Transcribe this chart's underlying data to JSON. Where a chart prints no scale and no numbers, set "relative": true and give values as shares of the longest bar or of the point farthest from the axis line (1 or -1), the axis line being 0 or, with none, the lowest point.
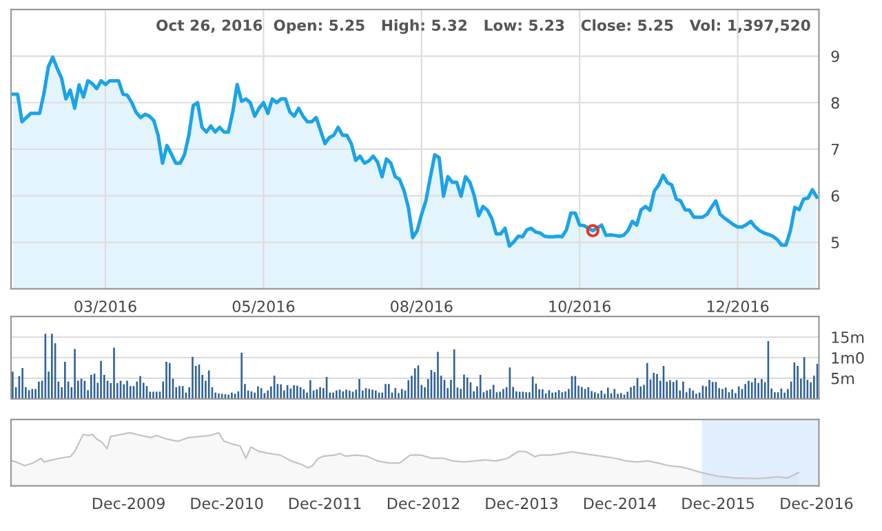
{
  "chart_data": [
    {
      "type": "area",
      "ylim": [
        4.0,
        10.0
      ],
      "yticks": [
        5,
        6,
        7,
        8,
        9
      ],
      "grid": true,
      "categories": [
        null,
        null,
        null,
        null,
        null,
        null,
        null,
        null,
        null,
        null,
        null,
        null,
        null,
        null,
        null,
        null,
        null,
        null,
        null,
        null,
        null,
        "03/2016",
        null,
        null,
        null,
        null,
        null,
        null,
        null,
        null,
        null,
        null,
        null,
        null,
        null,
        null,
        null,
        null,
        null,
        null,
        null,
        null,
        null,
        null,
        null,
        null,
        null,
        null,
        null,
        null,
        null,
        null,
        null,
        null,
        null,
        null,
        null,
        "05/2016",
        null,
        null,
        null,
        null,
        null,
        null,
        null,
        null,
        null,
        null,
        null,
        null,
        null,
        null,
        null,
        null,
        null,
        null,
        null,
        null,
        null,
        null,
        null,
        null,
        null,
        null,
        null,
        null,
        null,
        null,
        null,
        null,
        null,
        null,
        null,
        "08/2016",
        null,
        null,
        null,
        null,
        null,
        null,
        null,
        null,
        null,
        null,
        null,
        null,
        null,
        null,
        null,
        null,
        null,
        null,
        null,
        null,
        null,
        null,
        null,
        null,
        null,
        null,
        null,
        null,
        null,
        null,
        null,
        null,
        null,
        null,
        null,
        "10/2016",
        null,
        null,
        null,
        null,
        null,
        null,
        null,
        null,
        null,
        null,
        null,
        null,
        null,
        null,
        null,
        null,
        null,
        null,
        null,
        null,
        null,
        null,
        null,
        null,
        null,
        null,
        null,
        null,
        null,
        null,
        null,
        null,
        null,
        null,
        null,
        "12/2016",
        null,
        null,
        null,
        null,
        null,
        null,
        null,
        null,
        null,
        null,
        null,
        null,
        null,
        null,
        null,
        null,
        null,
        null
      ],
      "annotations": [
        "Oct 26, 2016  Open: 5.25   High: 5.32   Low: 5.23   Close: 5.25   Vol: 1,397,520"
      ],
      "series": [
        {
          "color": "#1aa3e8",
          "values": [
            8.18,
            8.18,
            7.59,
            7.68,
            7.77,
            7.77,
            7.77,
            8.2,
            8.77,
            8.98,
            8.74,
            8.53,
            8.08,
            8.27,
            7.88,
            8.38,
            8.12,
            8.47,
            8.41,
            8.3,
            8.47,
            8.39,
            8.47,
            8.47,
            8.47,
            8.18,
            8.16,
            8.0,
            7.79,
            7.68,
            7.75,
            7.71,
            7.62,
            7.3,
            6.7,
            7.08,
            6.9,
            6.7,
            6.7,
            6.88,
            7.3,
            7.94,
            8.0,
            7.47,
            7.37,
            7.5,
            7.37,
            7.47,
            7.37,
            7.37,
            7.8,
            8.39,
            8.03,
            8.08,
            8.0,
            7.71,
            7.88,
            8.0,
            7.77,
            8.08,
            8.0,
            8.08,
            8.08,
            7.8,
            7.71,
            7.88,
            7.71,
            7.59,
            7.59,
            7.68,
            7.4,
            7.12,
            7.25,
            7.3,
            7.47,
            7.3,
            7.3,
            7.12,
            6.76,
            6.85,
            6.7,
            6.75,
            6.85,
            6.72,
            6.41,
            6.79,
            6.7,
            6.41,
            6.35,
            6.11,
            5.75,
            5.1,
            5.25,
            5.6,
            5.9,
            6.4,
            6.88,
            6.82,
            5.99,
            6.41,
            6.29,
            6.29,
            5.99,
            6.41,
            6.29,
            6.0,
            5.57,
            5.77,
            5.69,
            5.51,
            5.18,
            5.18,
            5.3,
            4.92,
            5.01,
            5.13,
            5.12,
            5.27,
            5.3,
            5.22,
            5.2,
            5.13,
            5.12,
            5.12,
            5.13,
            5.12,
            5.27,
            5.63,
            5.63,
            5.37,
            5.36,
            5.3,
            5.25,
            5.31,
            5.37,
            5.15,
            5.16,
            5.15,
            5.13,
            5.15,
            5.25,
            5.45,
            5.37,
            5.7,
            5.77,
            5.69,
            6.1,
            6.23,
            6.44,
            6.28,
            6.23,
            5.93,
            5.89,
            5.7,
            5.69,
            5.54,
            5.54,
            5.54,
            5.6,
            5.75,
            5.89,
            5.6,
            5.52,
            5.45,
            5.38,
            5.33,
            5.33,
            5.38,
            5.45,
            5.33,
            5.25,
            5.2,
            5.17,
            5.13,
            5.06,
            4.94,
            4.94,
            5.25,
            5.75,
            5.7,
            5.93,
            5.95,
            6.13,
            5.97
          ]
        },
        {
          "type": "scatter",
          "color": "#e8352a",
          "marker": "circle",
          "values": [
            null,
            null,
            null,
            null,
            null,
            null,
            null,
            null,
            null,
            null,
            null,
            null,
            null,
            null,
            null,
            null,
            null,
            null,
            null,
            null,
            null,
            null,
            null,
            null,
            null,
            null,
            null,
            null,
            null,
            null,
            null,
            null,
            null,
            null,
            null,
            null,
            null,
            null,
            null,
            null,
            null,
            null,
            null,
            null,
            null,
            null,
            null,
            null,
            null,
            null,
            null,
            null,
            null,
            null,
            null,
            null,
            null,
            null,
            null,
            null,
            null,
            null,
            null,
            null,
            null,
            null,
            null,
            null,
            null,
            null,
            null,
            null,
            null,
            null,
            null,
            null,
            null,
            null,
            null,
            null,
            null,
            null,
            null,
            null,
            null,
            null,
            null,
            null,
            null,
            null,
            null,
            null,
            null,
            null,
            null,
            null,
            null,
            null,
            null,
            null,
            null,
            null,
            null,
            null,
            null,
            null,
            null,
            null,
            null,
            null,
            null,
            null,
            null,
            null,
            null,
            null,
            null,
            null,
            null,
            null,
            null,
            null,
            null,
            null,
            null,
            null,
            null,
            null,
            null,
            null,
            null,
            null,
            5.25,
            null,
            null,
            null,
            null,
            null,
            null,
            null,
            null,
            null,
            null,
            null,
            null,
            null,
            null,
            null,
            null,
            null,
            null,
            null,
            null,
            null,
            null,
            null,
            null,
            null,
            null,
            null,
            null,
            null,
            null,
            null,
            null,
            null,
            null,
            null,
            null,
            null,
            null,
            null,
            null,
            null,
            null,
            null,
            null,
            null,
            null,
            null,
            null,
            null,
            null,
            null
          ]
        }
      ]
    },
    {
      "type": "bar",
      "ylim": [
        0,
        20
      ],
      "yticks": [
        {
          "value": 5,
          "label": "5m"
        },
        {
          "value": 10,
          "label": "1m0"
        },
        {
          "value": 15,
          "label": "15m"
        }
      ],
      "grid": "y",
      "categories": [
        null,
        null,
        null,
        null,
        null,
        null,
        null,
        null,
        null,
        null,
        null,
        null,
        null,
        null,
        null,
        null,
        null,
        null,
        null,
        null,
        null,
        null,
        null,
        null,
        null,
        null,
        null,
        null,
        null,
        null,
        null,
        null,
        null,
        null,
        null,
        null,
        null,
        null,
        null,
        null,
        null,
        null,
        null,
        null,
        null,
        null,
        null,
        null,
        null,
        null,
        null,
        null,
        null,
        null,
        null,
        null,
        null,
        null,
        null,
        null,
        null,
        null,
        null,
        null,
        null,
        null,
        null,
        null,
        null,
        null,
        null,
        null,
        null,
        null,
        null,
        null,
        null,
        null,
        null,
        null,
        null,
        null,
        null,
        null,
        null,
        null,
        null,
        null,
        null,
        null,
        null,
        null,
        null,
        null,
        null,
        null,
        null,
        null,
        null,
        null,
        null,
        null,
        null,
        null,
        null,
        null,
        null,
        null,
        null,
        null,
        null,
        null,
        null,
        null,
        null,
        null,
        null,
        null,
        null,
        null,
        null,
        null,
        null,
        null,
        null,
        null,
        null,
        null,
        null,
        null,
        null,
        null,
        null,
        null,
        null,
        null,
        null,
        null,
        null,
        null,
        null,
        null,
        null,
        null,
        null,
        null,
        null,
        null,
        null,
        null,
        null,
        null,
        null,
        null,
        null,
        null,
        null,
        null,
        null,
        null,
        null,
        null,
        null,
        null,
        null,
        null,
        null,
        null,
        null,
        null,
        null,
        null,
        null,
        null,
        null,
        null,
        null,
        null,
        null,
        null,
        null,
        null,
        null,
        null,
        null,
        null,
        null,
        null,
        null,
        null,
        null,
        null,
        null,
        null,
        null,
        null,
        null,
        null,
        null,
        null,
        null,
        null,
        null,
        null,
        null,
        null,
        null,
        null,
        null,
        null,
        null,
        null,
        null,
        null,
        null,
        null,
        null,
        null,
        null,
        null,
        null,
        null,
        null,
        null,
        null,
        null,
        null,
        null,
        null,
        null,
        null,
        null,
        null,
        null,
        null,
        null,
        null,
        null,
        null,
        null,
        null,
        null,
        null,
        null,
        null,
        null,
        null
      ],
      "series": [
        {
          "color": "#2f6196",
          "values": [
            6.6,
            2.8,
            5.5,
            7.5,
            2.8,
            2.1,
            2.4,
            2.4,
            4.2,
            4.4,
            15.8,
            6.6,
            15.8,
            13.5,
            4.2,
            2.8,
            9,
            4.2,
            2.8,
            12.1,
            4.4,
            4.9,
            4.4,
            2.1,
            5.8,
            6.1,
            3.9,
            9.2,
            5.8,
            4.4,
            3.8,
            12.4,
            3.8,
            4.4,
            3.5,
            4.4,
            3.1,
            3.1,
            4.2,
            5.5,
            3.9,
            3.1,
            1.7,
            1.7,
            1.7,
            1.7,
            4.2,
            9,
            8.7,
            4.9,
            2.8,
            3.1,
            3.1,
            1.5,
            2.8,
            10.2,
            8,
            8.3,
            5.8,
            4.4,
            6.9,
            2.8,
            1.5,
            1.3,
            1.2,
            1.1,
            1.0,
            1.5,
            1.2,
            1.8,
            11.2,
            3.6,
            2.0,
            1.8,
            1.5,
            3.0,
            2.6,
            1.4,
            2.0,
            3.0,
            5.6,
            3.6,
            3.5,
            2.0,
            3.3,
            2.5,
            3.3,
            3.2,
            2.8,
            2.3,
            1.5,
            4.5,
            2.0,
            2.3,
            2.8,
            2.6,
            5.3,
            1.5,
            1.5,
            2.0,
            2.2,
            1.8,
            2.2,
            2.0,
            1.7,
            2.2,
            4.8,
            2.0,
            2.6,
            2.4,
            2.2,
            2.0,
            1.5,
            1.5,
            3.6,
            3.6,
            1.5,
            2.6,
            1.4,
            2.4,
            2.0,
            4.5,
            5.6,
            7.4,
            8.1,
            3.4,
            2.8,
            4.8,
            7.0,
            6.5,
            11.4,
            5.6,
            4.6,
            2.6,
            4.6,
            12.0,
            2.7,
            2.4,
            5.9,
            5.2,
            4.0,
            1.8,
            3.0,
            5.8,
            1.6,
            2.0,
            2.3,
            3.4,
            1.6,
            1.7,
            2.4,
            2.8,
            7.6,
            2.9,
            1.8,
            1.7,
            1.7,
            1.6,
            1.6,
            5.4,
            3.7,
            2.3,
            2.3,
            1.3,
            2.1,
            1.5,
            1.6,
            2.1,
            1.6,
            1.8,
            2.4,
            5.5,
            5.5,
            3.2,
            2.9,
            2.4,
            2.8,
            1.9,
            1.6,
            1.3,
            2.0,
            1.2,
            2.7,
            1.3,
            2.4,
            1.2,
            1.4,
            1.0,
            1.7,
            2.8,
            3.2,
            5.0,
            3.0,
            3.4,
            8.7,
            4.7,
            6.3,
            6.0,
            4.4,
            8.0,
            4.2,
            4.5,
            4.1,
            4.5,
            2.0,
            4.2,
            1.6,
            2.6,
            2.0,
            1.2,
            1.5,
            3.2,
            3.0,
            4.6,
            4.1,
            4.1,
            2.6,
            2.4,
            2.7,
            1.6,
            2.3,
            1.4,
            3.0,
            2.4,
            3.6,
            4.4,
            4.0,
            5.0,
            3.8,
            4.8,
            4.0,
            14.0,
            2.5,
            1.6,
            1.6,
            2.5,
            1.5,
            2.4,
            4.2,
            8.8,
            8.0,
            4.9,
            10.1,
            4.6,
            4.0,
            5.6,
            8.5
          ]
        }
      ]
    },
    {
      "type": "area",
      "relative": true,
      "xlim": [
        "2008-09-20",
        "2016-12-10"
      ],
      "xticks": [
        {
          "value": "2009-12-01",
          "label": "Dec-2009"
        },
        {
          "value": "2010-12-01",
          "label": "Dec-2010"
        },
        {
          "value": "2011-12-01",
          "label": "Dec-2011"
        },
        {
          "value": "2012-12-01",
          "label": "Dec-2012"
        },
        {
          "value": "2013-12-01",
          "label": "Dec-2013"
        },
        {
          "value": "2014-12-01",
          "label": "Dec-2014"
        },
        {
          "value": "2015-12-01",
          "label": "Dec-2015"
        },
        {
          "value": "2016-12-01",
          "label": "Dec-2016"
        }
      ],
      "bands": [
        {
          "axis": "x",
          "from": "2015-10-04",
          "to": "2016-12-10",
          "color": "#dcebfc"
        }
      ],
      "series": [
        {
          "color": "#c4c4c4",
          "x": [
            "2008-09-25",
            "2008-10-10",
            "2008-11-10",
            "2008-12-10",
            "2009-01-10",
            "2009-01-20",
            "2009-02-20",
            "2009-03-20",
            "2009-04-28",
            "2009-05-15",
            "2009-06-15",
            "2009-07-05",
            "2009-07-20",
            "2009-08-05",
            "2009-08-25",
            "2009-09-12",
            "2009-09-25",
            "2009-10-15",
            "2009-12-05",
            "2010-01-15",
            "2010-02-24",
            "2010-03-14",
            "2010-04-23",
            "2010-06-03",
            "2010-07-12",
            "2010-08-22",
            "2010-10-01",
            "2010-11-01",
            "2010-11-21",
            "2010-12-20",
            "2011-01-20",
            "2011-02-10",
            "2011-03-01",
            "2011-03-30",
            "2011-05-09",
            "2011-06-18",
            "2011-07-28",
            "2011-09-07",
            "2011-09-28",
            "2011-10-16",
            "2011-11-06",
            "2011-11-27",
            "2012-01-06",
            "2012-01-25",
            "2012-02-15",
            "2012-03-25",
            "2012-05-04",
            "2012-06-13",
            "2012-07-25",
            "2012-09-03",
            "2012-10-13",
            "2012-11-22",
            "2013-01-01",
            "2013-02-12",
            "2013-03-22",
            "2013-05-01",
            "2013-06-10",
            "2013-07-19",
            "2013-08-28",
            "2013-10-10",
            "2013-11-19",
            "2013-12-19",
            "2014-01-19",
            "2014-02-07",
            "2014-03-16",
            "2014-04-28",
            "2014-06-07",
            "2014-07-16",
            "2014-08-25",
            "2014-10-04",
            "2014-11-13",
            "2014-12-25",
            "2015-02-03",
            "2015-03-13",
            "2015-04-22",
            "2015-06-01",
            "2015-07-13",
            "2015-08-22",
            "2015-10-01",
            "2015-12-01",
            "2016-02-01",
            "2016-04-20",
            "2016-05-28",
            "2016-07-07",
            "2016-08-16",
            "2016-09-25"
          ],
          "values": [
            0.47,
            0.45,
            0.38,
            0.43,
            0.52,
            0.45,
            0.49,
            0.52,
            0.55,
            0.65,
            0.97,
            0.95,
            0.97,
            0.88,
            0.82,
            0.7,
            0.93,
            0.95,
            1.0,
            0.95,
            0.91,
            0.95,
            0.88,
            0.84,
            0.91,
            0.93,
            0.95,
            1.0,
            0.84,
            0.79,
            0.75,
            0.52,
            0.73,
            0.65,
            0.61,
            0.58,
            0.47,
            0.4,
            0.34,
            0.38,
            0.52,
            0.56,
            0.58,
            0.61,
            0.56,
            0.58,
            0.56,
            0.47,
            0.43,
            0.43,
            0.58,
            0.58,
            0.52,
            0.52,
            0.47,
            0.45,
            0.47,
            0.49,
            0.47,
            0.52,
            0.65,
            0.64,
            0.55,
            0.58,
            0.58,
            0.61,
            0.64,
            0.61,
            0.58,
            0.55,
            0.52,
            0.47,
            0.45,
            0.47,
            0.43,
            0.38,
            0.36,
            0.31,
            0.25,
            0.18,
            0.15,
            0.14,
            0.15,
            0.17,
            0.15,
            0.25
          ]
        }
      ]
    }
  ]
}
